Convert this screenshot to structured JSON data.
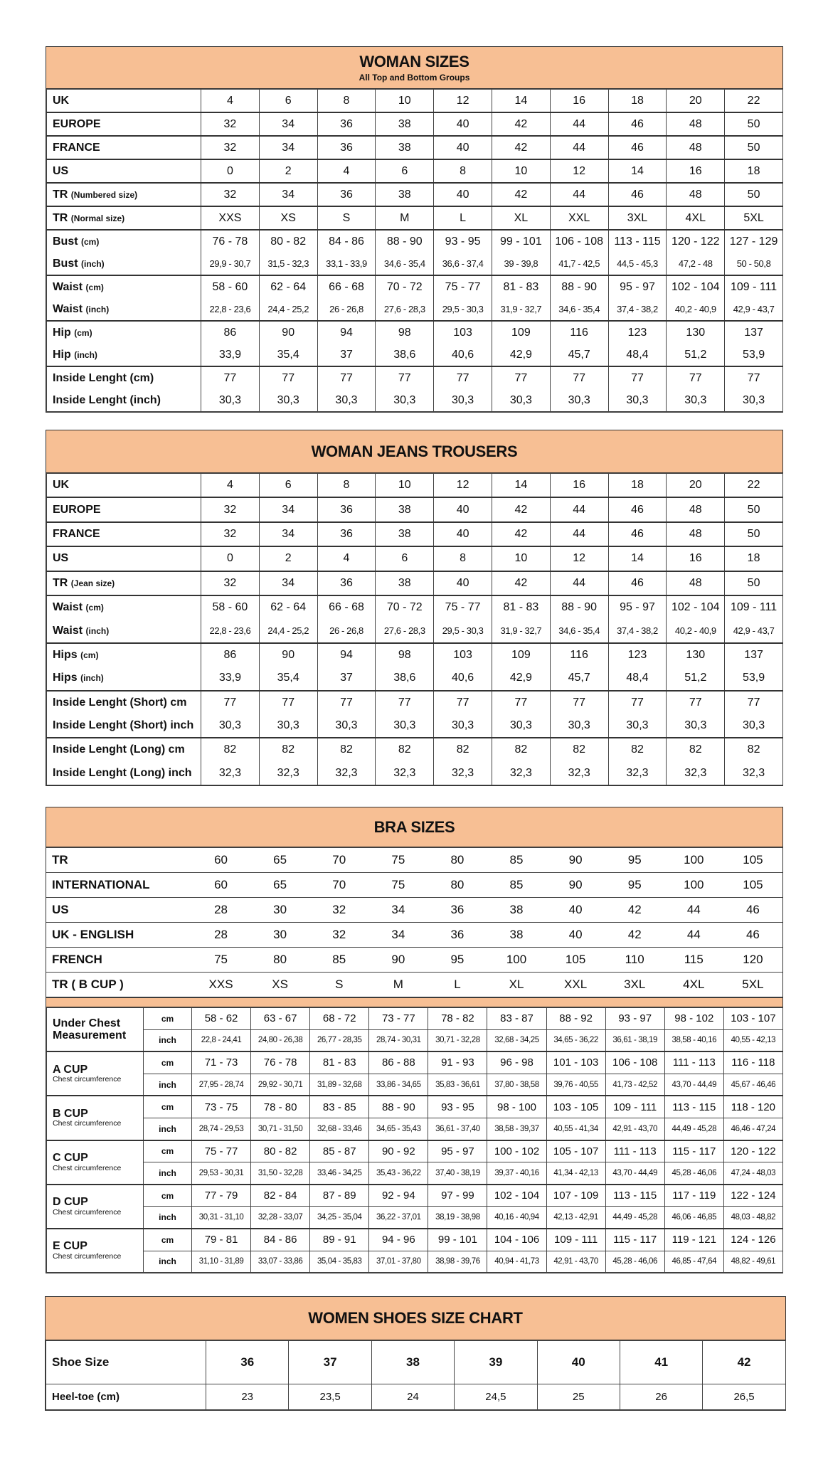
{
  "woman_sizes": {
    "title": "WOMAN SIZES",
    "subtitle": "All Top and Bottom Groups",
    "groups": [
      [
        {
          "label": "UK",
          "unit": "",
          "values": [
            "4",
            "6",
            "8",
            "10",
            "12",
            "14",
            "16",
            "18",
            "20",
            "22"
          ]
        }
      ],
      [
        {
          "label": "EUROPE",
          "unit": "",
          "values": [
            "32",
            "34",
            "36",
            "38",
            "40",
            "42",
            "44",
            "46",
            "48",
            "50"
          ]
        }
      ],
      [
        {
          "label": "FRANCE",
          "unit": "",
          "values": [
            "32",
            "34",
            "36",
            "38",
            "40",
            "42",
            "44",
            "46",
            "48",
            "50"
          ]
        }
      ],
      [
        {
          "label": "US",
          "unit": "",
          "values": [
            "0",
            "2",
            "4",
            "6",
            "8",
            "10",
            "12",
            "14",
            "16",
            "18"
          ]
        }
      ],
      [
        {
          "label": "TR",
          "unit": "(Numbered size)",
          "values": [
            "32",
            "34",
            "36",
            "38",
            "40",
            "42",
            "44",
            "46",
            "48",
            "50"
          ]
        }
      ],
      [
        {
          "label": "TR",
          "unit": "(Normal size)",
          "values": [
            "XXS",
            "XS",
            "S",
            "M",
            "L",
            "XL",
            "XXL",
            "3XL",
            "4XL",
            "5XL"
          ]
        }
      ],
      [
        {
          "label": "Bust",
          "unit": "(cm)",
          "values": [
            "76 - 78",
            "80 - 82",
            "84 - 86",
            "88 - 90",
            "93 - 95",
            "99 - 101",
            "106 - 108",
            "113 - 115",
            "120 - 122",
            "127 - 129"
          ]
        },
        {
          "label": "Bust",
          "unit": "(inch)",
          "small": true,
          "values": [
            "29,9 - 30,7",
            "31,5 - 32,3",
            "33,1 - 33,9",
            "34,6 - 35,4",
            "36,6 - 37,4",
            "39 - 39,8",
            "41,7 - 42,5",
            "44,5 - 45,3",
            "47,2 - 48",
            "50 - 50,8"
          ]
        }
      ],
      [
        {
          "label": "Waist",
          "unit": "(cm)",
          "values": [
            "58 - 60",
            "62 - 64",
            "66 - 68",
            "70 - 72",
            "75 - 77",
            "81 - 83",
            "88 - 90",
            "95 - 97",
            "102 - 104",
            "109 - 111"
          ]
        },
        {
          "label": "Waist",
          "unit": "(inch)",
          "small": true,
          "values": [
            "22,8 - 23,6",
            "24,4 - 25,2",
            "26 - 26,8",
            "27,6 - 28,3",
            "29,5 - 30,3",
            "31,9 - 32,7",
            "34,6 - 35,4",
            "37,4 - 38,2",
            "40,2 - 40,9",
            "42,9 - 43,7"
          ]
        }
      ],
      [
        {
          "label": "Hip",
          "unit": "(cm)",
          "values": [
            "86",
            "90",
            "94",
            "98",
            "103",
            "109",
            "116",
            "123",
            "130",
            "137"
          ]
        },
        {
          "label": "Hip",
          "unit": "(inch)",
          "values": [
            "33,9",
            "35,4",
            "37",
            "38,6",
            "40,6",
            "42,9",
            "45,7",
            "48,4",
            "51,2",
            "53,9"
          ]
        }
      ],
      [
        {
          "label": "Inside Lenght (cm)",
          "unit": "",
          "values": [
            "77",
            "77",
            "77",
            "77",
            "77",
            "77",
            "77",
            "77",
            "77",
            "77"
          ]
        },
        {
          "label": "Inside Lenght (inch)",
          "unit": "",
          "values": [
            "30,3",
            "30,3",
            "30,3",
            "30,3",
            "30,3",
            "30,3",
            "30,3",
            "30,3",
            "30,3",
            "30,3"
          ]
        }
      ]
    ]
  },
  "jeans": {
    "title": "WOMAN JEANS TROUSERS",
    "groups": [
      [
        {
          "label": "UK",
          "unit": "",
          "values": [
            "4",
            "6",
            "8",
            "10",
            "12",
            "14",
            "16",
            "18",
            "20",
            "22"
          ]
        }
      ],
      [
        {
          "label": "EUROPE",
          "unit": "",
          "values": [
            "32",
            "34",
            "36",
            "38",
            "40",
            "42",
            "44",
            "46",
            "48",
            "50"
          ]
        }
      ],
      [
        {
          "label": "FRANCE",
          "unit": "",
          "values": [
            "32",
            "34",
            "36",
            "38",
            "40",
            "42",
            "44",
            "46",
            "48",
            "50"
          ]
        }
      ],
      [
        {
          "label": "US",
          "unit": "",
          "values": [
            "0",
            "2",
            "4",
            "6",
            "8",
            "10",
            "12",
            "14",
            "16",
            "18"
          ]
        }
      ],
      [
        {
          "label": "TR",
          "unit": "(Jean size)",
          "values": [
            "32",
            "34",
            "36",
            "38",
            "40",
            "42",
            "44",
            "46",
            "48",
            "50"
          ]
        }
      ],
      [
        {
          "label": "Waist",
          "unit": "(cm)",
          "values": [
            "58 - 60",
            "62 - 64",
            "66 - 68",
            "70 - 72",
            "75 - 77",
            "81 - 83",
            "88 - 90",
            "95 - 97",
            "102 - 104",
            "109 - 111"
          ]
        },
        {
          "label": "Waist",
          "unit": "(inch)",
          "small": true,
          "values": [
            "22,8 - 23,6",
            "24,4 - 25,2",
            "26 - 26,8",
            "27,6 - 28,3",
            "29,5 - 30,3",
            "31,9 - 32,7",
            "34,6 - 35,4",
            "37,4 - 38,2",
            "40,2 - 40,9",
            "42,9 - 43,7"
          ]
        }
      ],
      [
        {
          "label": "Hips",
          "unit": "(cm)",
          "values": [
            "86",
            "90",
            "94",
            "98",
            "103",
            "109",
            "116",
            "123",
            "130",
            "137"
          ]
        },
        {
          "label": "Hips",
          "unit": "(inch)",
          "values": [
            "33,9",
            "35,4",
            "37",
            "38,6",
            "40,6",
            "42,9",
            "45,7",
            "48,4",
            "51,2",
            "53,9"
          ]
        }
      ],
      [
        {
          "label": "Inside Lenght (Short) cm",
          "unit": "",
          "values": [
            "77",
            "77",
            "77",
            "77",
            "77",
            "77",
            "77",
            "77",
            "77",
            "77"
          ]
        },
        {
          "label": "Inside Lenght (Short) inch",
          "unit": "",
          "values": [
            "30,3",
            "30,3",
            "30,3",
            "30,3",
            "30,3",
            "30,3",
            "30,3",
            "30,3",
            "30,3",
            "30,3"
          ]
        }
      ],
      [
        {
          "label": "Inside Lenght (Long) cm",
          "unit": "",
          "values": [
            "82",
            "82",
            "82",
            "82",
            "82",
            "82",
            "82",
            "82",
            "82",
            "82"
          ]
        },
        {
          "label": "Inside Lenght (Long) inch",
          "unit": "",
          "values": [
            "32,3",
            "32,3",
            "32,3",
            "32,3",
            "32,3",
            "32,3",
            "32,3",
            "32,3",
            "32,3",
            "32,3"
          ]
        }
      ]
    ]
  },
  "bra": {
    "title": "BRA SIZES",
    "top_rows": [
      {
        "label": "TR",
        "values": [
          "60",
          "65",
          "70",
          "75",
          "80",
          "85",
          "90",
          "95",
          "100",
          "105"
        ]
      },
      {
        "label": "INTERNATIONAL",
        "values": [
          "60",
          "65",
          "70",
          "75",
          "80",
          "85",
          "90",
          "95",
          "100",
          "105"
        ]
      },
      {
        "label": "US",
        "values": [
          "28",
          "30",
          "32",
          "34",
          "36",
          "38",
          "40",
          "42",
          "44",
          "46"
        ]
      },
      {
        "label": "UK - ENGLISH",
        "values": [
          "28",
          "30",
          "32",
          "34",
          "36",
          "38",
          "40",
          "42",
          "44",
          "46"
        ]
      },
      {
        "label": "FRENCH",
        "values": [
          "75",
          "80",
          "85",
          "90",
          "95",
          "100",
          "105",
          "110",
          "115",
          "120"
        ]
      },
      {
        "label": "TR ( B CUP )",
        "values": [
          "XXS",
          "XS",
          "S",
          "M",
          "L",
          "XL",
          "XXL",
          "3XL",
          "4XL",
          "5XL"
        ]
      }
    ],
    "cups": [
      {
        "name": "Under Chest Measurement",
        "sub": "",
        "cm_unit": "cm",
        "inch_unit": "inch",
        "cm": [
          "58 - 62",
          "63 - 67",
          "68 - 72",
          "73 - 77",
          "78 - 82",
          "83 - 87",
          "88 - 92",
          "93 - 97",
          "98 - 102",
          "103 - 107"
        ],
        "inch": [
          "22,8 - 24,41",
          "24,80 - 26,38",
          "26,77 - 28,35",
          "28,74 - 30,31",
          "30,71 - 32,28",
          "32,68 - 34,25",
          "34,65 - 36,22",
          "36,61 - 38,19",
          "38,58 - 40,16",
          "40,55 - 42,13"
        ]
      },
      {
        "name": "A CUP",
        "sub": "Chest circumference",
        "cm_unit": "cm",
        "inch_unit": "inch",
        "cm": [
          "71 - 73",
          "76 - 78",
          "81 - 83",
          "86 - 88",
          "91 - 93",
          "96 - 98",
          "101 - 103",
          "106 - 108",
          "111 - 113",
          "116 - 118"
        ],
        "inch": [
          "27,95 - 28,74",
          "29,92 - 30,71",
          "31,89 - 32,68",
          "33,86 - 34,65",
          "35,83 - 36,61",
          "37,80 - 38,58",
          "39,76 - 40,55",
          "41,73 - 42,52",
          "43,70 - 44,49",
          "45,67 - 46,46"
        ]
      },
      {
        "name": "B CUP",
        "sub": "Chest circumference",
        "cm_unit": "cm",
        "inch_unit": "inch",
        "cm": [
          "73 - 75",
          "78 - 80",
          "83 - 85",
          "88 - 90",
          "93 - 95",
          "98 - 100",
          "103 - 105",
          "109 - 111",
          "113 - 115",
          "118 - 120"
        ],
        "inch": [
          "28,74 - 29,53",
          "30,71 - 31,50",
          "32,68 - 33,46",
          "34,65 - 35,43",
          "36,61 - 37,40",
          "38,58 - 39,37",
          "40,55 - 41,34",
          "42,91 - 43,70",
          "44,49 - 45,28",
          "46,46 - 47,24"
        ]
      },
      {
        "name": "C CUP",
        "sub": "Chest circumference",
        "cm_unit": "cm",
        "inch_unit": "inch",
        "cm": [
          "75 - 77",
          "80 - 82",
          "85 - 87",
          "90 - 92",
          "95 - 97",
          "100 - 102",
          "105 - 107",
          "111 - 113",
          "115 - 117",
          "120 - 122"
        ],
        "inch": [
          "29,53 - 30,31",
          "31,50 - 32,28",
          "33,46 - 34,25",
          "35,43 - 36,22",
          "37,40 - 38,19",
          "39,37 - 40,16",
          "41,34 - 42,13",
          "43,70 - 44,49",
          "45,28 - 46,06",
          "47,24 - 48,03"
        ]
      },
      {
        "name": "D CUP",
        "sub": "Chest circumference",
        "cm_unit": "cm",
        "inch_unit": "inch",
        "cm": [
          "77 - 79",
          "82 - 84",
          "87 - 89",
          "92 - 94",
          "97 - 99",
          "102 - 104",
          "107 - 109",
          "113 - 115",
          "117 - 119",
          "122 - 124"
        ],
        "inch": [
          "30,31 - 31,10",
          "32,28 - 33,07",
          "34,25 - 35,04",
          "36,22 - 37,01",
          "38,19 - 38,98",
          "40,16 - 40,94",
          "42,13 - 42,91",
          "44,49 - 45,28",
          "46,06 - 46,85",
          "48,03 - 48,82"
        ]
      },
      {
        "name": "E CUP",
        "sub": "Chest circumference",
        "cm_unit": "cm",
        "inch_unit": "inch",
        "cm": [
          "79 - 81",
          "84 - 86",
          "89 - 91",
          "94 - 96",
          "99 - 101",
          "104 - 106",
          "109 - 111",
          "115 - 117",
          "119 - 121",
          "124 - 126"
        ],
        "inch": [
          "31,10 - 31,89",
          "33,07 - 33,86",
          "35,04 - 35,83",
          "37,01 - 37,80",
          "38,98 - 39,76",
          "40,94 - 41,73",
          "42,91 - 43,70",
          "45,28 - 46,06",
          "46,85 - 47,64",
          "48,82 - 49,61"
        ]
      }
    ]
  },
  "shoes": {
    "title": "WOMEN SHOES SIZE CHART",
    "rows": [
      {
        "label": "Shoe Size",
        "values": [
          "36",
          "37",
          "38",
          "39",
          "40",
          "41",
          "42"
        ]
      },
      {
        "label": "Heel-toe (cm)",
        "values": [
          "23",
          "23,5",
          "24",
          "24,5",
          "25",
          "26",
          "26,5"
        ]
      }
    ]
  },
  "colors": {
    "header_fill": "#f7bf94",
    "border": "#333333"
  }
}
